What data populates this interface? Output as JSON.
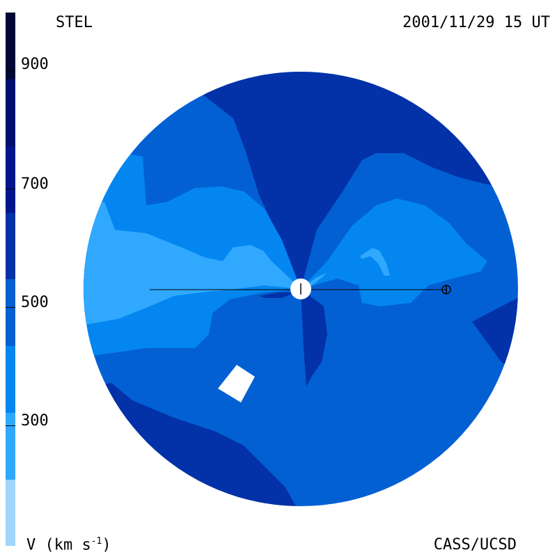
{
  "header": {
    "source": "STEL",
    "datetime": "2001/11/29 15 UT"
  },
  "footer": {
    "credit": "CASS/UCSD",
    "units_main": "V (km s",
    "units_exp": "-1",
    "units_close": ")"
  },
  "colorbar": {
    "tick_labels": [
      "900",
      "700",
      "500",
      "300"
    ],
    "tick_values": [
      900,
      700,
      500,
      300
    ],
    "range": [
      100,
      1000
    ],
    "band_colors": [
      "#9fd5fb",
      "#2fa8fe",
      "#0486f1",
      "#0260d3",
      "#0231a8",
      "#01168c",
      "#010f6d",
      "#010836"
    ]
  },
  "colors": {
    "speed_lowest": "#9fd5fb",
    "speed_300_400": "#2fa8fe",
    "speed_400_500": "#0486f1",
    "speed_500_600": "#0260d3",
    "speed_600_700": "#0231a8",
    "sun": "#ffffff",
    "earth_marker": "#000000"
  }
}
